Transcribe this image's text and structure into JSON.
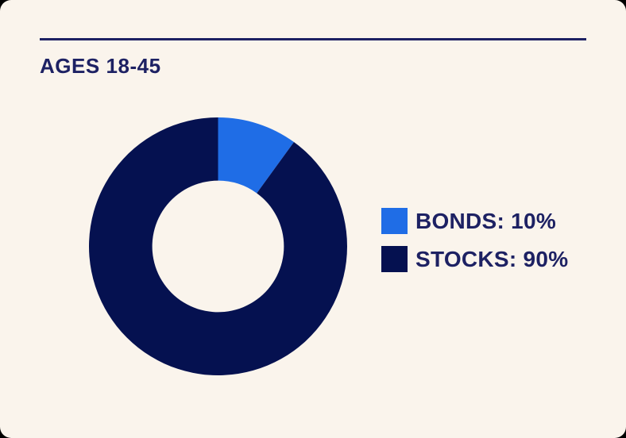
{
  "card": {
    "title": "AGES 18-45"
  },
  "colors": {
    "page_bg": "#000000",
    "card_bg": "#faf4ec",
    "text_navy": "#1d2163",
    "bonds_blue": "#1f6de6",
    "stocks_navy": "#051150"
  },
  "chart_data": {
    "type": "pie",
    "variant": "donut",
    "title": "AGES 18-45",
    "segments": [
      {
        "label": "BONDS",
        "value": 10,
        "color": "#1f6de6"
      },
      {
        "label": "STOCKS",
        "value": 90,
        "color": "#051150"
      }
    ],
    "start_angle_deg": -90,
    "direction": "clockwise",
    "inner_radius_ratio": 0.51,
    "legend_position": "right",
    "data_labels": false
  },
  "legend": {
    "items": [
      {
        "label": "BONDS: 10%"
      },
      {
        "label": "STOCKS: 90%"
      }
    ]
  }
}
